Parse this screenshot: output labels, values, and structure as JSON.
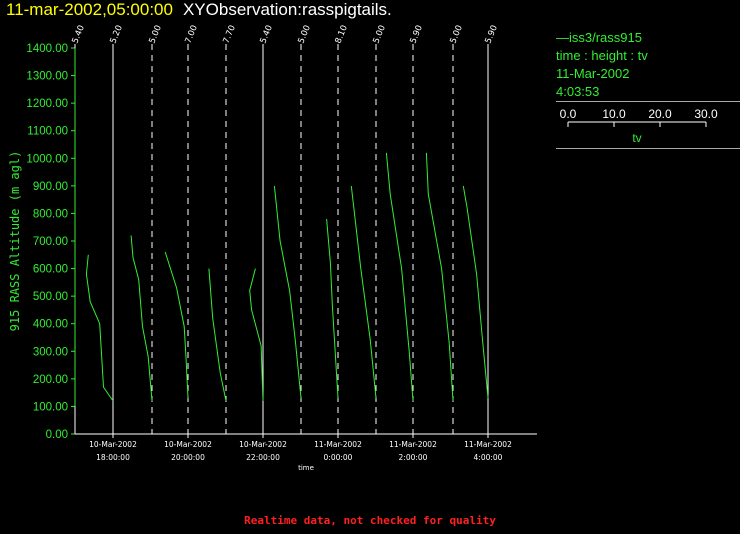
{
  "header": {
    "timestamp": "11-mar-2002,05:00:00",
    "name": "XYObservation:rasspigtails."
  },
  "legend": {
    "series": "iss3/rass915",
    "fields": "time : height : tv",
    "date": "11-Mar-2002",
    "time": "4:03:53",
    "scale_ticks": [
      "0.0",
      "10.0",
      "20.0",
      "30.0"
    ],
    "scale_label": "tv"
  },
  "footer": "Realtime data, not checked for quality",
  "colors": {
    "data": "#33ee33",
    "axes": "#ffffff",
    "title_time": "#ffff00",
    "footer": "#ff2020"
  },
  "chart_data": {
    "type": "line",
    "ylabel": "915 RASS Altitude (m agl)",
    "xlabel": "time",
    "ylim": [
      0,
      1400
    ],
    "yticks": [
      0,
      100,
      200,
      300,
      400,
      500,
      600,
      700,
      800,
      900,
      1000,
      1100,
      1200,
      1300,
      1400
    ],
    "ytick_labels": [
      "0.00",
      "100.00",
      "200.00",
      "300.00",
      "400.00",
      "500.00",
      "600.00",
      "700.00",
      "800.00",
      "900.00",
      "1000.00",
      "1100.00",
      "1200.00",
      "1300.00",
      "1400.00"
    ],
    "xlim": [
      16.0,
      5.75
    ],
    "xticks": [
      {
        "hour": 18,
        "date": "10-Mar-2002",
        "time": "18:00:00"
      },
      {
        "hour": 20,
        "date": "10-Mar-2002",
        "time": "20:00:00"
      },
      {
        "hour": 22,
        "date": "10-Mar-2002",
        "time": "22:00:00"
      },
      {
        "hour": 24,
        "date": "11-Mar-2002",
        "time": "0:00:00"
      },
      {
        "hour": 26,
        "date": "11-Mar-2002",
        "time": "2:00:00"
      },
      {
        "hour": 28,
        "date": "11-Mar-2002",
        "time": "4:00:00"
      }
    ],
    "profiles": [
      {
        "time_hours": 16.05,
        "tv_label": "5.40",
        "ref": "solid",
        "values": [
          [
            16.05,
            100
          ],
          [
            16.05,
            300
          ],
          [
            16.05,
            500
          ],
          [
            16.05,
            700
          ],
          [
            16.05,
            900
          ],
          [
            16.05,
            1100
          ],
          [
            16.05,
            1400
          ]
        ]
      },
      {
        "time_hours": 17.05,
        "tv_label": "5.20",
        "ref": "solid",
        "values": [
          [
            17.05,
            120
          ],
          [
            16.8,
            170
          ],
          [
            16.7,
            400
          ],
          [
            16.45,
            480
          ],
          [
            16.35,
            580
          ],
          [
            16.4,
            650
          ]
        ]
      },
      {
        "time_hours": 18.05,
        "tv_label": "5.00",
        "ref": "dashed",
        "values": [
          [
            18.05,
            120
          ],
          [
            17.95,
            280
          ],
          [
            17.8,
            390
          ],
          [
            17.7,
            560
          ],
          [
            17.55,
            640
          ],
          [
            17.5,
            720
          ]
        ]
      },
      {
        "time_hours": 19.05,
        "tv_label": "7.00",
        "ref": "dashed",
        "values": [
          [
            19.05,
            130
          ],
          [
            19.0,
            270
          ],
          [
            18.95,
            390
          ],
          [
            18.75,
            530
          ],
          [
            18.45,
            660
          ]
        ]
      },
      {
        "time_hours": 20.05,
        "tv_label": "7.70",
        "ref": "dashed",
        "values": [
          [
            20.05,
            120
          ],
          [
            19.9,
            220
          ],
          [
            19.7,
            420
          ],
          [
            19.6,
            600
          ]
        ]
      },
      {
        "time_hours": 21.05,
        "tv_label": "5.40",
        "ref": "solid",
        "values": [
          [
            21.05,
            120
          ],
          [
            21.0,
            320
          ],
          [
            20.75,
            450
          ],
          [
            20.7,
            520
          ],
          [
            20.85,
            600
          ]
        ]
      },
      {
        "time_hours": 22.05,
        "tv_label": "5.00",
        "ref": "dashed",
        "values": [
          [
            22.05,
            130
          ],
          [
            21.9,
            340
          ],
          [
            21.75,
            520
          ],
          [
            21.5,
            700
          ],
          [
            21.35,
            900
          ]
        ]
      },
      {
        "time_hours": 23.05,
        "tv_label": "8.10",
        "ref": "dashed",
        "values": [
          [
            23.05,
            130
          ],
          [
            22.9,
            470
          ],
          [
            22.85,
            620
          ],
          [
            22.75,
            780
          ]
        ]
      },
      {
        "time_hours": 24.05,
        "tv_label": "5.00",
        "ref": "dashed",
        "values": [
          [
            24.05,
            130
          ],
          [
            23.9,
            340
          ],
          [
            23.65,
            600
          ],
          [
            23.4,
            900
          ]
        ]
      },
      {
        "time_hours": 25.05,
        "tv_label": "5.90",
        "ref": "dashed",
        "values": [
          [
            25.05,
            120
          ],
          [
            24.95,
            300
          ],
          [
            24.75,
            600
          ],
          [
            24.45,
            870
          ],
          [
            24.35,
            1020
          ]
        ]
      },
      {
        "time_hours": 26.05,
        "tv_label": "5.00",
        "ref": "dashed",
        "values": [
          [
            26.05,
            120
          ],
          [
            25.95,
            330
          ],
          [
            25.75,
            600
          ],
          [
            25.4,
            870
          ],
          [
            25.35,
            1020
          ]
        ]
      },
      {
        "time_hours": 27.05,
        "tv_label": "5.90",
        "ref": "solid",
        "values": [
          [
            27.05,
            130
          ],
          [
            26.9,
            350
          ],
          [
            26.75,
            580
          ],
          [
            26.5,
            820
          ],
          [
            26.4,
            900
          ]
        ]
      }
    ]
  }
}
